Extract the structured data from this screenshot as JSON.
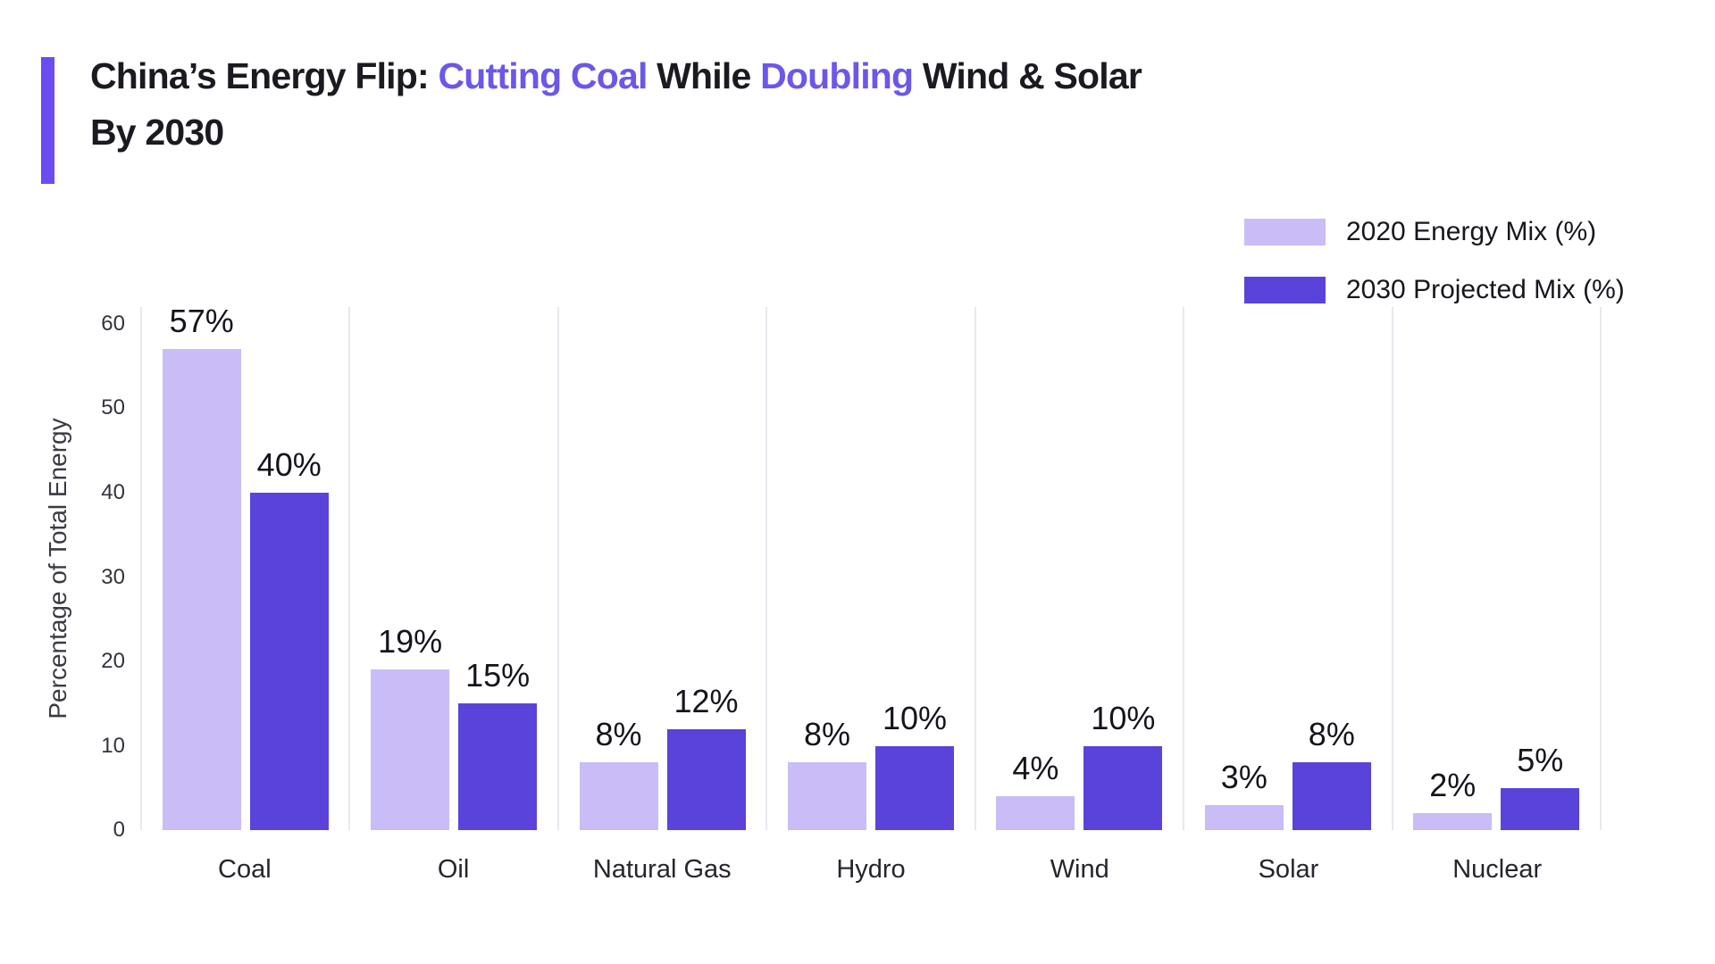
{
  "title": {
    "part1": "China’s Energy Flip: ",
    "accent1": "Cutting Coal",
    "part2": " While ",
    "accent2": "Doubling",
    "part3": " Wind & Solar",
    "part4": "By 2030"
  },
  "legend": [
    {
      "label": "2020 Energy Mix (%)",
      "color": "#C9BCF7"
    },
    {
      "label": "2030 Projected Mix (%)",
      "color": "#5A43DB"
    }
  ],
  "chart_data": {
    "type": "bar",
    "title": "China’s Energy Flip: Cutting Coal While Doubling Wind & Solar By 2030",
    "categories": [
      "Coal",
      "Oil",
      "Natural Gas",
      "Hydro",
      "Wind",
      "Solar",
      "Nuclear"
    ],
    "series": [
      {
        "name": "2020 Energy Mix (%)",
        "color": "#C9BCF7",
        "values": [
          57,
          19,
          8,
          8,
          4,
          3,
          2
        ]
      },
      {
        "name": "2030 Projected Mix (%)",
        "color": "#5A43DB",
        "values": [
          40,
          15,
          12,
          10,
          10,
          8,
          5
        ]
      }
    ],
    "value_labels": [
      [
        "57%",
        "19%",
        "8%",
        "8%",
        "4%",
        "3%",
        "2%"
      ],
      [
        "40%",
        "15%",
        "12%",
        "10%",
        "10%",
        "8%",
        "5%"
      ]
    ],
    "ylabel": "Percentage of Total Energy",
    "xlabel": "",
    "yticks": [
      0,
      10,
      20,
      30,
      40,
      50,
      60
    ],
    "ylim": [
      0,
      62
    ],
    "grid": "vertical-group-separators",
    "legend_position": "top-right"
  },
  "colors": {
    "accent_bar": "#6C4CF1",
    "title_accent": "#6B57EA",
    "series_2020": "#C9BCF7",
    "series_2030": "#5A43DB",
    "gridline": "#E9E7EE",
    "text_dark": "#1B1A21"
  }
}
